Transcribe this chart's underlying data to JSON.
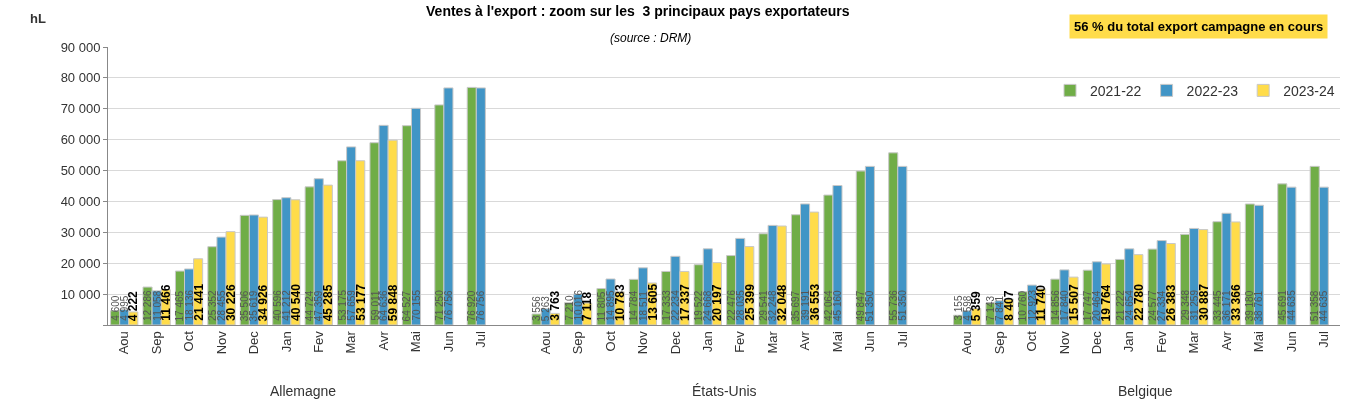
{
  "chart_data": {
    "type": "bar",
    "title": "Ventes à l'export : zoom sur les  3 principaux pays exportateurs",
    "subtitle": "(source : DRM)",
    "ylabel": "hL",
    "categories": [
      "Aou",
      "Sep",
      "Oct",
      "Nov",
      "Dec",
      "Jan",
      "Fev",
      "Mar",
      "Avr",
      "Mai",
      "Jun",
      "Jul",
      null,
      "Aou",
      "Sep",
      "Oct",
      "Nov",
      "Dec",
      "Jan",
      "Fev",
      "Mar",
      "Avr",
      "Mai",
      "Jun",
      "Jul",
      null,
      "Aou",
      "Sep",
      "Oct",
      "Nov",
      "Dec",
      "Jan",
      "Fev",
      "Mar",
      "Avr",
      "Mai",
      "Jun",
      "Jul"
    ],
    "annotations": [
      "56 % du total export campagne en cours",
      "Allemagne",
      "États-Unis",
      "Belgique"
    ],
    "series": [
      {
        "name": "2021-22",
        "color": "#70ad47",
        "values": [
          4600,
          12286,
          17465,
          25352,
          35506,
          40596,
          44724,
          53175,
          59011,
          64527,
          71250,
          76920,
          null,
          3556,
          7210,
          11805,
          14784,
          17333,
          19522,
          22476,
          29541,
          35697,
          42064,
          49847,
          55736,
          null,
          3155,
          7143,
          10760,
          14856,
          17747,
          21222,
          24577,
          29348,
          33445,
          39180,
          45691,
          51358
        ]
      },
      {
        "name": "2022-23",
        "color": "#4195c6",
        "values": [
          4995,
          11058,
          18136,
          28455,
          35619,
          41212,
          47359,
          57659,
          64636,
          70155,
          76756,
          76756,
          null,
          5263,
          10016,
          14895,
          18511,
          22234,
          24668,
          28035,
          32248,
          39191,
          45160,
          51350,
          51350,
          null,
          4598,
          7841,
          12923,
          17840,
          20464,
          24654,
          27334,
          31259,
          36171,
          38761,
          44635,
          44635
        ]
      },
      {
        "name": "2023-24",
        "color": "#ffdc4a",
        "values": [
          4222,
          11466,
          21441,
          30226,
          34926,
          40540,
          45285,
          53177,
          59848,
          null,
          null,
          null,
          null,
          3763,
          7118,
          10783,
          13605,
          17337,
          20197,
          25399,
          32048,
          36553,
          null,
          null,
          null,
          null,
          5359,
          8407,
          11740,
          15507,
          19764,
          22780,
          26383,
          30887,
          33366,
          null,
          null,
          null
        ]
      }
    ],
    "data_labels": true,
    "ylim": [
      0,
      90000
    ],
    "yticks": [
      {
        "value": 0,
        "label": null
      },
      {
        "value": 10000,
        "label": "10 000"
      },
      {
        "value": 20000,
        "label": "20 000"
      },
      {
        "value": 30000,
        "label": "30 000"
      },
      {
        "value": 40000,
        "label": "40 000"
      },
      {
        "value": 50000,
        "label": "50 000"
      },
      {
        "value": 60000,
        "label": "60 000"
      },
      {
        "value": 70000,
        "label": "70 000"
      },
      {
        "value": 80000,
        "label": "80 000"
      },
      {
        "value": 90000,
        "label": "90 000"
      }
    ],
    "grid": "y",
    "legend": "top right"
  }
}
